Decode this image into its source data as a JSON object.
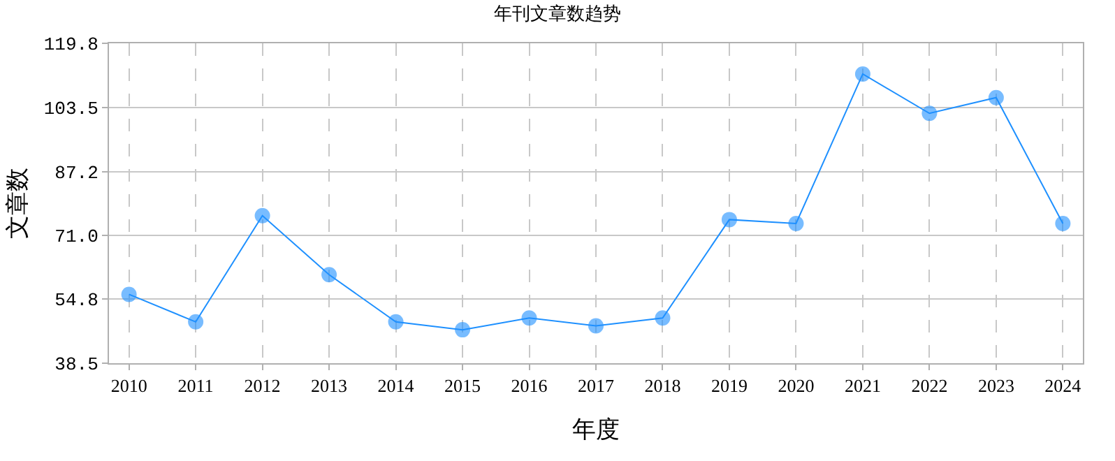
{
  "chart_data": {
    "type": "line",
    "title": "年刊文章数趋势",
    "xlabel": "年度",
    "ylabel": "文章数",
    "categories": [
      "2010",
      "2011",
      "2012",
      "2013",
      "2014",
      "2015",
      "2016",
      "2017",
      "2018",
      "2019",
      "2020",
      "2021",
      "2022",
      "2023",
      "2024"
    ],
    "series": [
      {
        "color": "#1e90ff",
        "values": [
          56,
          49,
          76,
          61,
          49,
          47,
          50,
          48,
          50,
          75,
          74,
          112,
          102,
          106,
          74
        ]
      }
    ],
    "ylim": [
      38.5,
      119.8
    ],
    "yticks": [
      {
        "value": 38.5,
        "label": "38.5"
      },
      {
        "value": 54.8,
        "label": "54.8"
      },
      {
        "value": 71.0,
        "label": "71.0"
      },
      {
        "value": 87.2,
        "label": "87.2"
      },
      {
        "value": 103.5,
        "label": "103.5"
      },
      {
        "value": 119.8,
        "label": "119.8"
      }
    ],
    "grid": true,
    "marker": "circle",
    "line_style": "solid"
  }
}
